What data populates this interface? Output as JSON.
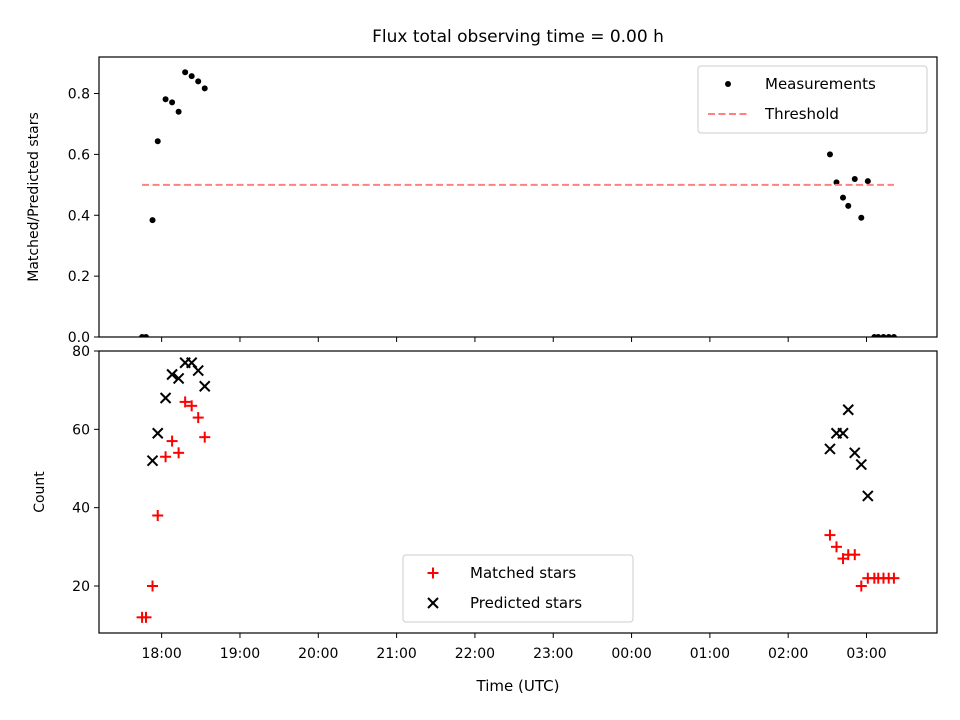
{
  "chart_data": [
    {
      "type": "scatter",
      "title": "Flux total observing time = 0.00 h",
      "xlabel": "",
      "ylabel": "Matched/Predicted stars",
      "xlim": [
        "17:12",
        "03:54"
      ],
      "ylim": [
        0,
        0.92
      ],
      "yticks": [
        0.0,
        0.2,
        0.4,
        0.6,
        0.8
      ],
      "ytick_labels": [
        "0.0",
        "0.2",
        "0.4",
        "0.6",
        "0.8"
      ],
      "legend": {
        "placement": "top-right",
        "entries": [
          "Measurements",
          "Threshold"
        ]
      },
      "series": [
        {
          "name": "Measurements",
          "marker": "dot",
          "color": "#000000",
          "points": [
            [
              "17:45",
              0.0
            ],
            [
              "17:48",
              0.0
            ],
            [
              "17:53",
              0.384
            ],
            [
              "17:57",
              0.643
            ],
            [
              "18:03",
              0.781
            ],
            [
              "18:08",
              0.771
            ],
            [
              "18:13",
              0.74
            ],
            [
              "18:18",
              0.87
            ],
            [
              "18:23",
              0.857
            ],
            [
              "18:28",
              0.84
            ],
            [
              "18:33",
              0.817
            ],
            [
              "02:32",
              0.6
            ],
            [
              "02:37",
              0.508
            ],
            [
              "02:42",
              0.458
            ],
            [
              "02:46",
              0.431
            ],
            [
              "02:51",
              0.519
            ],
            [
              "02:56",
              0.392
            ],
            [
              "03:01",
              0.512
            ],
            [
              "03:06",
              0.0
            ],
            [
              "03:09",
              0.0
            ],
            [
              "03:13",
              0.0
            ],
            [
              "03:17",
              0.0
            ],
            [
              "03:21",
              0.0
            ]
          ]
        },
        {
          "name": "Threshold",
          "style": "dashed",
          "color": "#ff8080",
          "points": [
            [
              "17:45",
              0.5
            ],
            [
              "03:21",
              0.5
            ]
          ]
        }
      ]
    },
    {
      "type": "scatter",
      "title": "",
      "xlabel": "Time (UTC)",
      "ylabel": "Count",
      "xlim": [
        "17:12",
        "03:54"
      ],
      "ylim": [
        8,
        80
      ],
      "yticks": [
        20,
        40,
        60,
        80
      ],
      "ytick_labels": [
        "20",
        "40",
        "60",
        "80"
      ],
      "xticks": [
        "18:00",
        "19:00",
        "20:00",
        "21:00",
        "22:00",
        "23:00",
        "00:00",
        "01:00",
        "02:00",
        "03:00"
      ],
      "legend": {
        "placement": "bottom-center",
        "entries": [
          "Matched stars",
          "Predicted stars"
        ]
      },
      "series": [
        {
          "name": "Matched stars",
          "marker": "plus",
          "color": "#ff0000",
          "points": [
            [
              "17:45",
              12
            ],
            [
              "17:48",
              12
            ],
            [
              "17:53",
              20
            ],
            [
              "17:57",
              38
            ],
            [
              "18:03",
              53
            ],
            [
              "18:08",
              57
            ],
            [
              "18:13",
              54
            ],
            [
              "18:18",
              67
            ],
            [
              "18:23",
              66
            ],
            [
              "18:28",
              63
            ],
            [
              "18:33",
              58
            ],
            [
              "02:32",
              33
            ],
            [
              "02:37",
              30
            ],
            [
              "02:42",
              27
            ],
            [
              "02:46",
              28
            ],
            [
              "02:51",
              28
            ],
            [
              "02:56",
              20
            ],
            [
              "03:01",
              22
            ],
            [
              "03:06",
              22
            ],
            [
              "03:09",
              22
            ],
            [
              "03:13",
              22
            ],
            [
              "03:17",
              22
            ],
            [
              "03:21",
              22
            ]
          ]
        },
        {
          "name": "Predicted stars",
          "marker": "x",
          "color": "#000000",
          "points": [
            [
              "17:53",
              52
            ],
            [
              "17:57",
              59
            ],
            [
              "18:03",
              68
            ],
            [
              "18:08",
              74
            ],
            [
              "18:13",
              73
            ],
            [
              "18:18",
              77
            ],
            [
              "18:23",
              77
            ],
            [
              "18:28",
              75
            ],
            [
              "18:33",
              71
            ],
            [
              "02:32",
              55
            ],
            [
              "02:37",
              59
            ],
            [
              "02:42",
              59
            ],
            [
              "02:46",
              65
            ],
            [
              "02:51",
              54
            ],
            [
              "02:56",
              51
            ],
            [
              "03:01",
              43
            ]
          ]
        }
      ]
    }
  ]
}
